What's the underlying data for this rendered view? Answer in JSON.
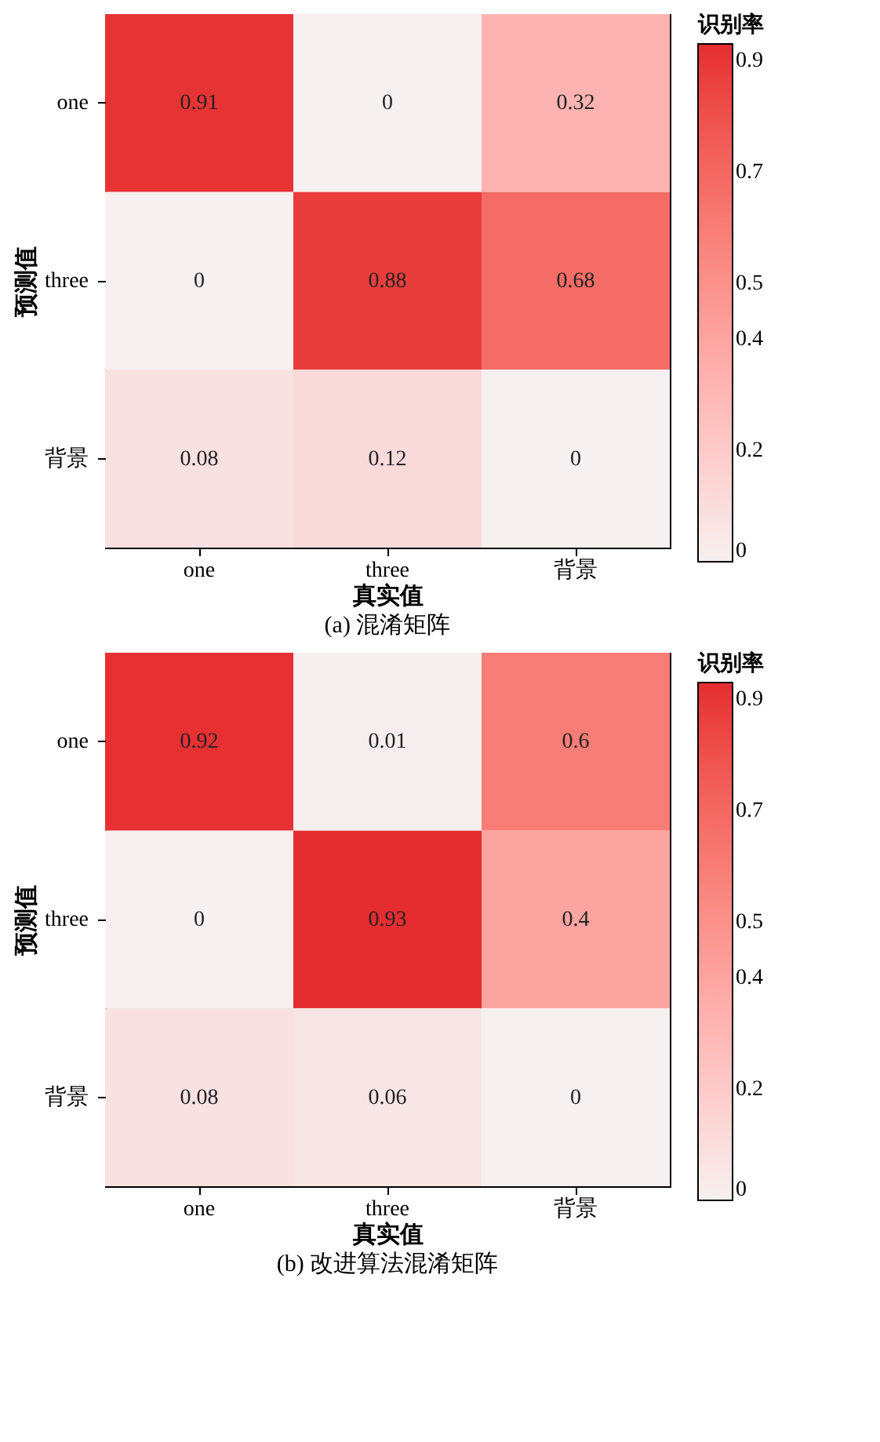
{
  "chart_data": [
    {
      "type": "heatmap",
      "title": "(a) 混淆矩阵",
      "xlabel": "真实值",
      "ylabel": "预测值",
      "legend_title": "识别率",
      "categories": [
        "one",
        "three",
        "背景"
      ],
      "y_categories": [
        "one",
        "three",
        "背景"
      ],
      "cells": [
        [
          0.91,
          0,
          0.32
        ],
        [
          0,
          0.88,
          0.68
        ],
        [
          0.08,
          0.12,
          0
        ]
      ],
      "clim": [
        0,
        0.93
      ],
      "cticks": [
        0,
        0.2,
        0.4,
        0.5,
        0.7,
        0.9
      ],
      "data_labels": true
    },
    {
      "type": "heatmap",
      "title": "(b) 改进算法混淆矩阵",
      "xlabel": "真实值",
      "ylabel": "预测值",
      "legend_title": "识别率",
      "categories": [
        "one",
        "three",
        "背景"
      ],
      "y_categories": [
        "one",
        "three",
        "背景"
      ],
      "cells": [
        [
          0.92,
          0.01,
          0.6
        ],
        [
          0,
          0.93,
          0.4
        ],
        [
          0.08,
          0.06,
          0
        ]
      ],
      "clim": [
        0,
        0.93
      ],
      "cticks": [
        0,
        0.2,
        0.4,
        0.5,
        0.7,
        0.9
      ],
      "data_labels": true
    }
  ]
}
